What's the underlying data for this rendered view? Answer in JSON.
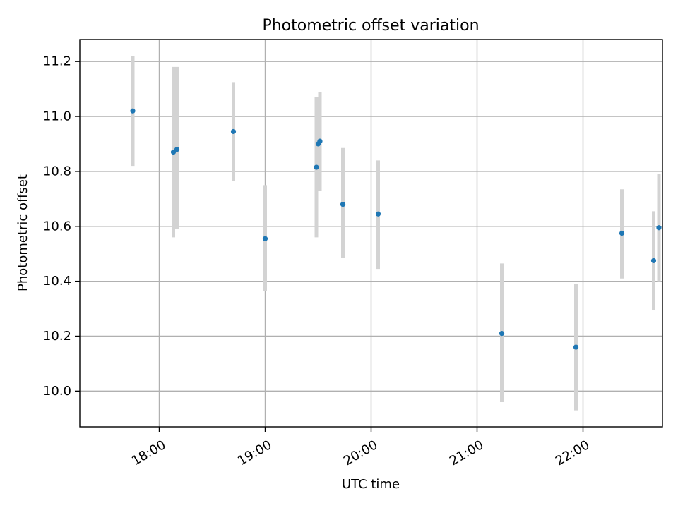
{
  "chart_data": {
    "type": "scatter",
    "title": "Photometric offset variation",
    "xlabel": "UTC time",
    "ylabel": "Photometric offset",
    "xlim": [
      "17:15",
      "22:45"
    ],
    "ylim": [
      9.87,
      11.28
    ],
    "x_ticks": [
      "18:00",
      "19:00",
      "20:00",
      "21:00",
      "22:00"
    ],
    "y_ticks": [
      10.0,
      10.2,
      10.4,
      10.6,
      10.8,
      11.0,
      11.2
    ],
    "y_tick_labels": [
      "10.0",
      "10.2",
      "10.4",
      "10.6",
      "10.8",
      "11.0",
      "11.2"
    ],
    "grid": true,
    "colors": {
      "point": "#1f77b4",
      "errorbar": "#d3d3d3"
    },
    "points": [
      {
        "time": "17:45",
        "y": 11.02,
        "yerr_low": 10.82,
        "yerr_high": 11.22
      },
      {
        "time": "18:08",
        "y": 10.87,
        "yerr_low": 10.56,
        "yerr_high": 11.18
      },
      {
        "time": "18:10",
        "y": 10.88,
        "yerr_low": 10.59,
        "yerr_high": 11.18
      },
      {
        "time": "18:42",
        "y": 10.945,
        "yerr_low": 10.765,
        "yerr_high": 11.125
      },
      {
        "time": "19:00",
        "y": 10.555,
        "yerr_low": 10.365,
        "yerr_high": 10.75
      },
      {
        "time": "19:29",
        "y": 10.815,
        "yerr_low": 10.56,
        "yerr_high": 11.07
      },
      {
        "time": "19:30",
        "y": 10.9,
        "yerr_low": 10.735,
        "yerr_high": 11.065
      },
      {
        "time": "19:31",
        "y": 10.91,
        "yerr_low": 10.73,
        "yerr_high": 11.09
      },
      {
        "time": "19:44",
        "y": 10.68,
        "yerr_low": 10.485,
        "yerr_high": 10.885
      },
      {
        "time": "20:04",
        "y": 10.645,
        "yerr_low": 10.445,
        "yerr_high": 10.84
      },
      {
        "time": "21:14",
        "y": 10.21,
        "yerr_low": 9.96,
        "yerr_high": 10.465
      },
      {
        "time": "21:56",
        "y": 10.16,
        "yerr_low": 9.93,
        "yerr_high": 10.39
      },
      {
        "time": "22:22",
        "y": 10.575,
        "yerr_low": 10.41,
        "yerr_high": 10.735
      },
      {
        "time": "22:40",
        "y": 10.475,
        "yerr_low": 10.295,
        "yerr_high": 10.655
      },
      {
        "time": "22:43",
        "y": 10.595,
        "yerr_low": 10.4,
        "yerr_high": 10.79
      }
    ]
  }
}
